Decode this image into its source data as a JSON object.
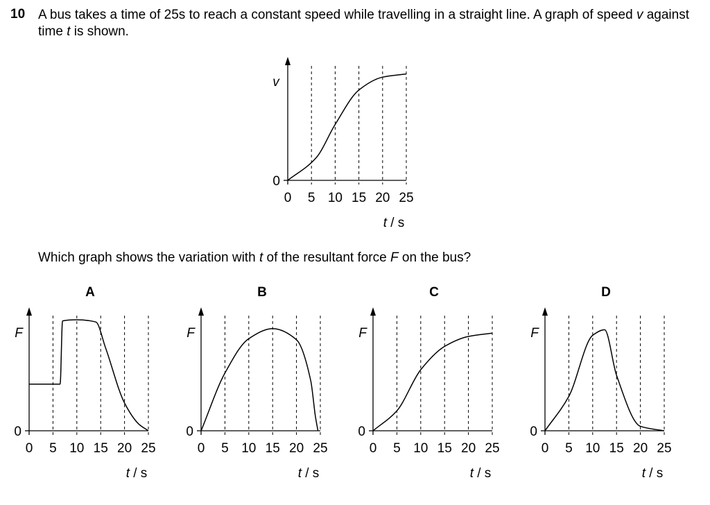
{
  "question": {
    "number": "10",
    "stem_part1": "A bus takes a time of 25",
    "stem_unit": "s",
    "stem_part2": " to reach a constant speed while travelling in a straight line. A graph of speed ",
    "stem_v": "v",
    "stem_part3": " against time ",
    "stem_t": "t",
    "stem_part4": " is shown.",
    "ask_part1": "Which graph shows the variation with ",
    "ask_t": "t",
    "ask_part2": " of the resultant force ",
    "ask_F": "F",
    "ask_part3": " on the bus?"
  },
  "main_graph": {
    "y_label": "v",
    "x_label_var": "t",
    "x_label_unit": " / s",
    "y_zero": "0"
  },
  "options": [
    {
      "letter": "A",
      "y_label": "F",
      "x_label_var": "t",
      "x_label_unit": " / s",
      "y_zero": "0"
    },
    {
      "letter": "B",
      "y_label": "F",
      "x_label_var": "t",
      "x_label_unit": " / s",
      "y_zero": "0"
    },
    {
      "letter": "C",
      "y_label": "F",
      "x_label_var": "t",
      "x_label_unit": " / s",
      "y_zero": "0"
    },
    {
      "letter": "D",
      "y_label": "F",
      "x_label_var": "t",
      "x_label_unit": " / s",
      "y_zero": "0"
    }
  ],
  "chart_data": [
    {
      "type": "line",
      "name": "main",
      "xlim": [
        0,
        25
      ],
      "ylim": [
        0,
        1
      ],
      "x_ticks": [
        "0",
        "5",
        "10",
        "15",
        "20",
        "25"
      ],
      "x": [
        0,
        6,
        10,
        15,
        20,
        25
      ],
      "y": [
        0,
        0.21,
        0.52,
        0.84,
        0.96,
        0.99
      ]
    },
    {
      "type": "line",
      "name": "A",
      "xlim": [
        0,
        25
      ],
      "ylim": [
        0,
        1
      ],
      "x_ticks": [
        "0",
        "5",
        "10",
        "15",
        "20",
        "25"
      ],
      "x": [
        0,
        6.5,
        7,
        10,
        14,
        16,
        20,
        23,
        25
      ],
      "y": [
        0.42,
        0.42,
        0.99,
        1.0,
        0.98,
        0.75,
        0.25,
        0.06,
        0
      ]
    },
    {
      "type": "line",
      "name": "B",
      "xlim": [
        0,
        25
      ],
      "ylim": [
        0,
        1
      ],
      "x_ticks": [
        "0",
        "5",
        "10",
        "15",
        "20",
        "25"
      ],
      "x": [
        0,
        5,
        10,
        15,
        20,
        23,
        24,
        24.5
      ],
      "y": [
        0,
        0.52,
        0.83,
        0.92,
        0.82,
        0.45,
        0.12,
        0
      ]
    },
    {
      "type": "line",
      "name": "C",
      "xlim": [
        0,
        25
      ],
      "ylim": [
        0,
        1
      ],
      "x_ticks": [
        "0",
        "5",
        "10",
        "15",
        "20",
        "25"
      ],
      "x": [
        0,
        5,
        10,
        15,
        20,
        25
      ],
      "y": [
        0,
        0.18,
        0.55,
        0.76,
        0.85,
        0.88
      ]
    },
    {
      "type": "line",
      "name": "D",
      "xlim": [
        0,
        25
      ],
      "ylim": [
        0,
        1
      ],
      "x_ticks": [
        "0",
        "5",
        "10",
        "15",
        "20",
        "25"
      ],
      "x": [
        0,
        5,
        10,
        12.5,
        15,
        20,
        25
      ],
      "y": [
        0,
        0.31,
        0.86,
        0.91,
        0.5,
        0.04,
        0
      ]
    }
  ]
}
